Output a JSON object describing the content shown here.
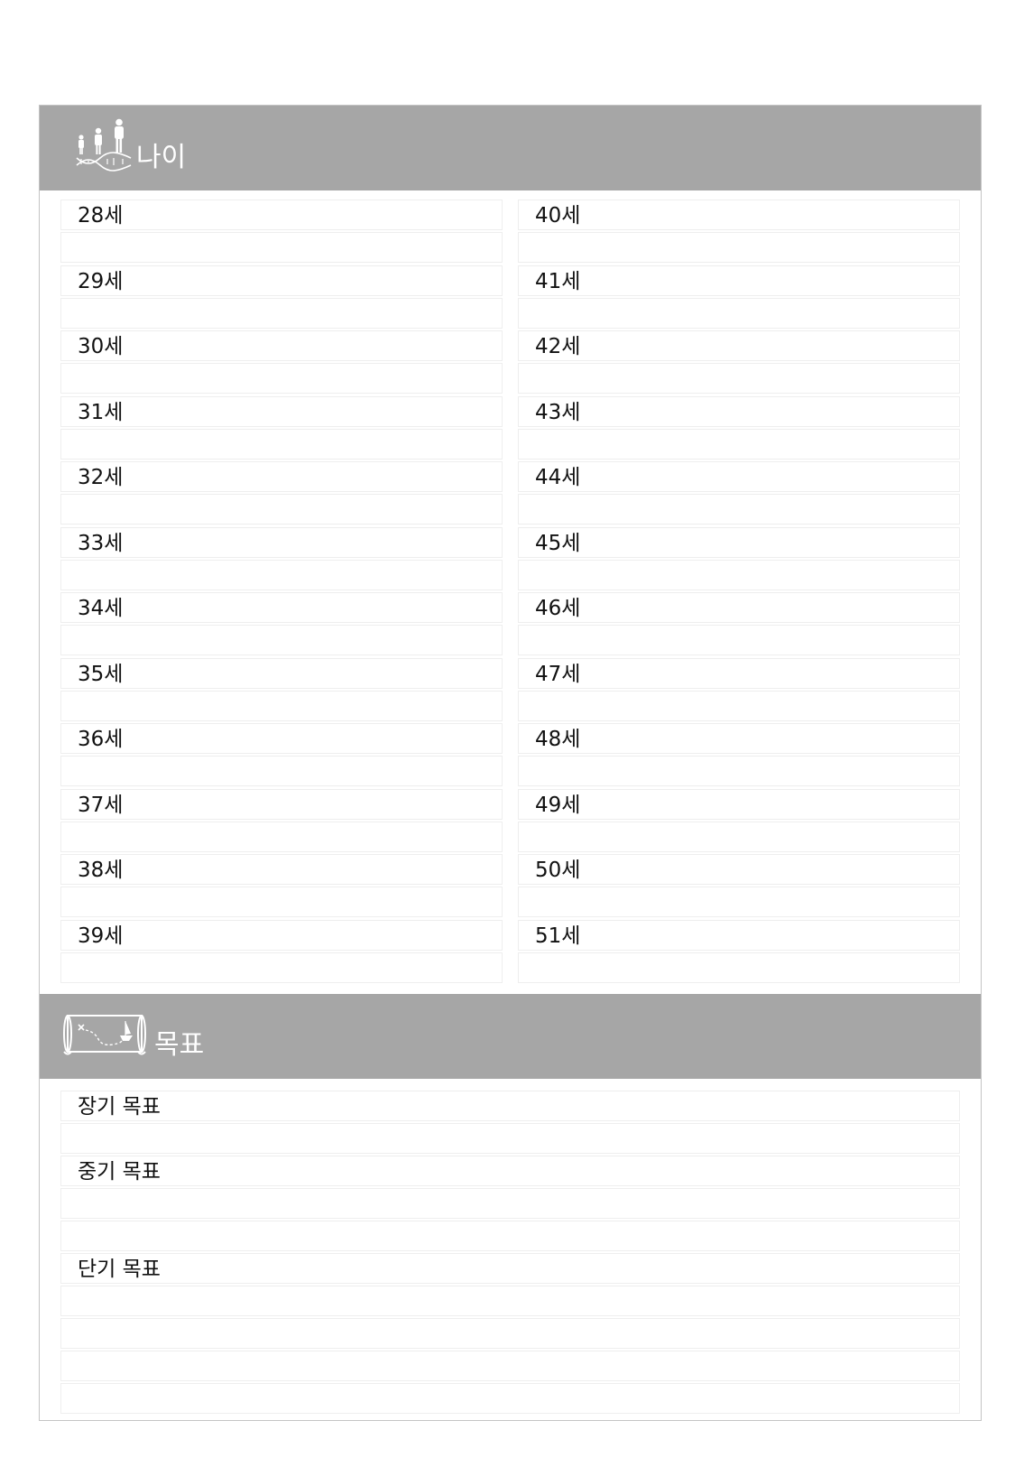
{
  "age_section": {
    "title": "나이",
    "icon": "people-growth-dna-icon",
    "left_ages": [
      "28세",
      "29세",
      "30세",
      "31세",
      "32세",
      "33세",
      "34세",
      "35세",
      "36세",
      "37세",
      "38세",
      "39세"
    ],
    "right_ages": [
      "40세",
      "41세",
      "42세",
      "43세",
      "44세",
      "45세",
      "46세",
      "47세",
      "48세",
      "49세",
      "50세",
      "51세"
    ]
  },
  "goal_section": {
    "title": "목표",
    "icon": "treasure-map-icon",
    "long_term": "장기 목표",
    "mid_term": "중기 목표",
    "short_term": "단기 목표"
  },
  "colors": {
    "header_bg": "#a6a6a6",
    "header_text": "#ffffff",
    "line_border": "#eeeeee"
  }
}
